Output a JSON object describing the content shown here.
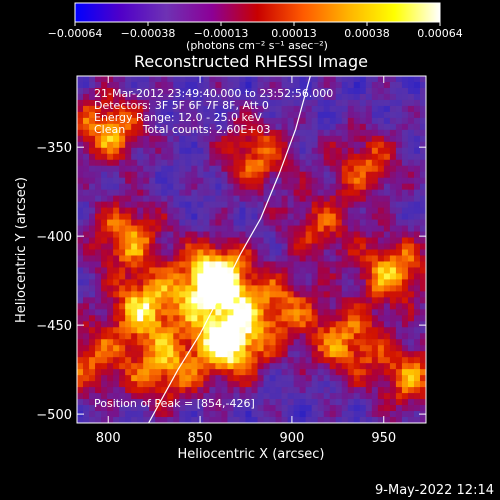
{
  "chart_data": {
    "type": "heatmap",
    "title": "Reconstructed RHESSI Image",
    "xlabel": "Heliocentric X (arcsec)",
    "ylabel": "Heliocentric Y (arcsec)",
    "xlim": [
      783,
      973
    ],
    "ylim": [
      -505,
      -310
    ],
    "x_ticks": [
      800,
      850,
      900,
      950
    ],
    "x_tick_labels": [
      "800",
      "850",
      "900",
      "950"
    ],
    "y_ticks": [
      -350,
      -400,
      -450,
      -500
    ],
    "y_tick_labels": [
      "−350",
      "−400",
      "−450",
      "−500"
    ],
    "colorbar": {
      "tick_labels": [
        "−0.00064",
        "−0.00038",
        "−0.00013",
        "0.00013",
        "0.00038",
        "0.00064"
      ],
      "label": "(photons cm⁻² s⁻¹ asec⁻²)",
      "colors": [
        "#0000ff",
        "#5000c8",
        "#6e32b4",
        "#8c0096",
        "#c80000",
        "#ff5a00",
        "#ffb400",
        "#ffff00",
        "#ffffff"
      ]
    },
    "annotations": [
      "21-Mar-2012 23:49:40.000 to 23:52:56.000",
      "Detectors: 3F 5F 6F 7F 8F, Att 0",
      "Energy Range: 12.0 - 25.0 keV",
      "Clean     Total counts: 2.60E+03"
    ],
    "peak_label": "Position of Peak = [854,-426]",
    "limb_curve": [
      [
        822,
        -505
      ],
      [
        838,
        -475
      ],
      [
        850,
        -455
      ],
      [
        860,
        -435
      ],
      [
        872,
        -410
      ],
      [
        883,
        -390
      ],
      [
        893,
        -365
      ],
      [
        902,
        -340
      ],
      [
        910,
        -310
      ]
    ],
    "sources": [
      {
        "x": 858,
        "y": -425,
        "intensity": 1.0
      },
      {
        "x": 866,
        "y": -460,
        "intensity": 0.85
      },
      {
        "x": 820,
        "y": -440,
        "intensity": 0.65
      },
      {
        "x": 800,
        "y": -340,
        "intensity": 0.6
      },
      {
        "x": 810,
        "y": -400,
        "intensity": 0.55
      },
      {
        "x": 955,
        "y": -420,
        "intensity": 0.6
      },
      {
        "x": 930,
        "y": -460,
        "intensity": 0.55
      },
      {
        "x": 830,
        "y": -475,
        "intensity": 0.55
      },
      {
        "x": 880,
        "y": -355,
        "intensity": 0.5
      },
      {
        "x": 940,
        "y": -360,
        "intensity": 0.45
      },
      {
        "x": 895,
        "y": -440,
        "intensity": 0.45
      },
      {
        "x": 965,
        "y": -480,
        "intensity": 0.5
      },
      {
        "x": 790,
        "y": -470,
        "intensity": 0.45
      },
      {
        "x": 915,
        "y": -395,
        "intensity": 0.4
      }
    ],
    "grid": false
  },
  "footer": {
    "date": "9-May-2022 12:14"
  }
}
